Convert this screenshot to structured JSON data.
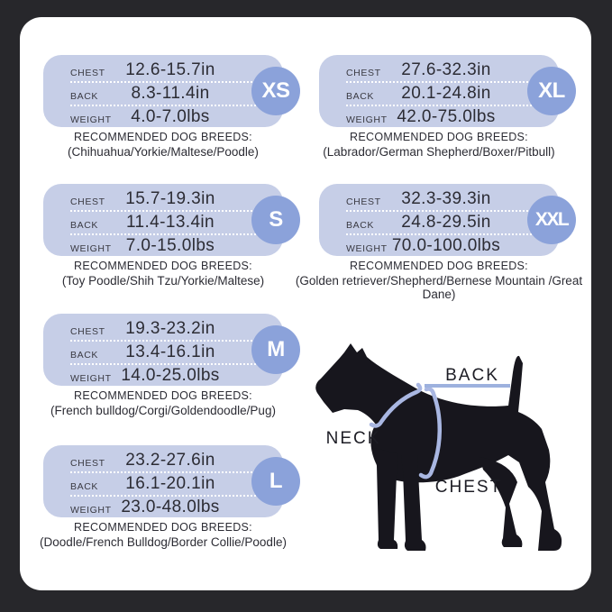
{
  "theme": {
    "outer_bg": "#27272b",
    "panel_bg": "#ffffff",
    "card_bg": "#c6cee7",
    "badge_bg": "#8ba2da",
    "badge_text": "#ffffff",
    "label_color": "#3a3a42",
    "value_color": "#2c2c34",
    "harness_color": "#a9b7e2",
    "back_line_color": "#9db1de",
    "dog_color": "#17161d",
    "diagram_label_color": "#1d1d25"
  },
  "labels": {
    "chest": "CHEST",
    "back": "BACK",
    "weight": "WEIGHT",
    "recommended": "RECOMMENDED DOG BREEDS:"
  },
  "sizes": [
    {
      "size": "XS",
      "column": "left",
      "row": 0,
      "chest": "12.6-15.7in",
      "back": "8.3-11.4in",
      "weight": "4.0-7.0lbs",
      "breeds": "(Chihuahua/Yorkie/Maltese/Poodle)"
    },
    {
      "size": "S",
      "column": "left",
      "row": 1,
      "chest": "15.7-19.3in",
      "back": "11.4-13.4in",
      "weight": "7.0-15.0lbs",
      "breeds": "(Toy Poodle/Shih Tzu/Yorkie/Maltese)"
    },
    {
      "size": "M",
      "column": "left",
      "row": 2,
      "chest": "19.3-23.2in",
      "back": "13.4-16.1in",
      "weight": "14.0-25.0lbs",
      "breeds": "(French bulldog/Corgi/Goldendoodle/Pug)"
    },
    {
      "size": "L",
      "column": "left",
      "row": 3,
      "chest": "23.2-27.6in",
      "back": "16.1-20.1in",
      "weight": "23.0-48.0lbs",
      "breeds": "(Doodle/French Bulldog/Border Collie/Poodle)"
    },
    {
      "size": "XL",
      "column": "right",
      "row": 0,
      "chest": "27.6-32.3in",
      "back": "20.1-24.8in",
      "weight": "42.0-75.0lbs",
      "breeds": "(Labrador/German Shepherd/Boxer/Pitbull)"
    },
    {
      "size": "XXL",
      "column": "right",
      "row": 1,
      "chest": "32.3-39.3in",
      "back": "24.8-29.5in",
      "weight": "70.0-100.0lbs",
      "breeds": "(Golden retriever/Shepherd/Bernese Mountain /Great Dane)"
    }
  ],
  "diagram": {
    "back_label": "BACK",
    "neck_label": "NECK",
    "chest_label": "CHEST"
  }
}
